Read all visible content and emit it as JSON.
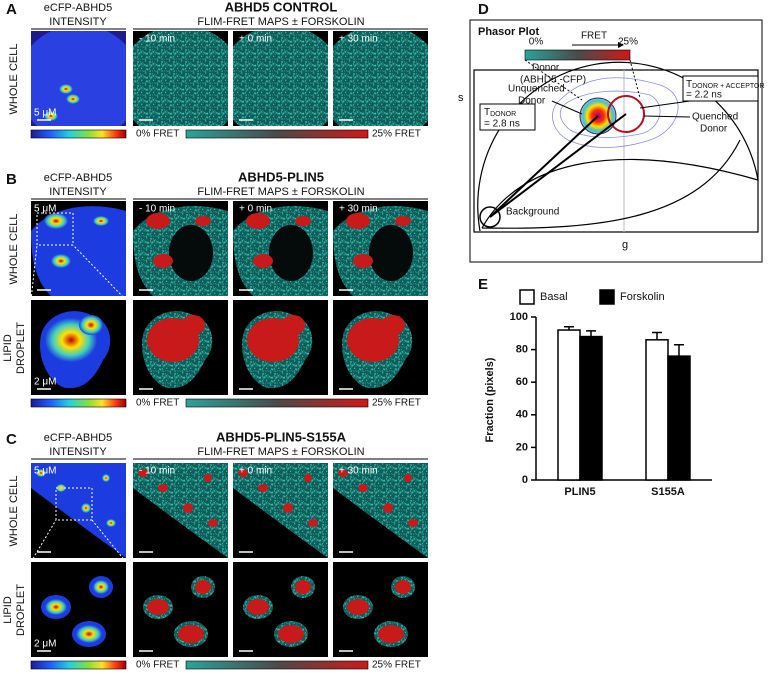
{
  "panels": {
    "A": {
      "letter": "A",
      "intensity_title": [
        "eCFP-ABHD5",
        "INTENSITY"
      ],
      "title": "ABHD5 CONTROL",
      "subtitle": "FLIM-FRET MAPS ± FORSKOLIN",
      "row_labels": [
        [
          "WHOLE CELL"
        ]
      ],
      "times": [
        "- 10 min",
        "+ 0 min",
        "+ 30 min"
      ],
      "scale_bars": [
        "5 μM"
      ],
      "fret_min": "0% FRET",
      "fret_max": "25% FRET"
    },
    "B": {
      "letter": "B",
      "intensity_title": [
        "eCFP-ABHD5",
        "INTENSITY"
      ],
      "title": "ABHD5-PLIN5",
      "subtitle": "FLIM-FRET MAPS ± FORSKOLIN",
      "row_labels": [
        [
          "WHOLE CELL"
        ],
        [
          "LIPID",
          "DROPLET"
        ]
      ],
      "times": [
        "- 10 min",
        "+ 0 min",
        "+ 30 min"
      ],
      "scale_bars": [
        "5 μM",
        "2 μM"
      ],
      "fret_min": "0% FRET",
      "fret_max": "25% FRET"
    },
    "C": {
      "letter": "C",
      "intensity_title": [
        "eCFP-ABHD5",
        "INTENSITY"
      ],
      "title": "ABHD5-PLIN5-S155A",
      "subtitle": "FLIM-FRET MAPS ± FORSKOLIN",
      "row_labels": [
        [
          "WHOLE CELL"
        ],
        [
          "LIPID",
          "DROPLET"
        ]
      ],
      "times": [
        "- 10 min",
        "+ 0 min",
        "+ 30 min"
      ],
      "scale_bars": [
        "5 μM",
        "2 μM"
      ],
      "fret_min": "0% FRET",
      "fret_max": "25% FRET"
    },
    "D": {
      "letter": "D",
      "title": "Phasor Plot",
      "fret": "FRET",
      "fret_min": "0%",
      "fret_max": "25%",
      "donor": [
        "Donor",
        "(ABHD5 -CFP)"
      ],
      "s_axis": "s",
      "g_axis": "g",
      "unquenched": [
        "Unquenched",
        "Donor"
      ],
      "quenched": [
        "Quenched",
        "Donor"
      ],
      "tau_donor": {
        "symbol": "T",
        "sub": "DONOR",
        "value": "= 2.8 ns"
      },
      "tau_fret": {
        "symbol": "T",
        "sub": "DONOR + ACCEPTOR",
        "value": "= 2.2 ns"
      },
      "background": "Background"
    },
    "E": {
      "letter": "E"
    }
  },
  "chart_data": {
    "type": "bar",
    "ylabel": "Fraction (pixels)",
    "categories": [
      "PLIN5",
      "S155A"
    ],
    "series": [
      {
        "name": "Basal",
        "color": "#ffffff",
        "values": [
          92,
          86
        ],
        "errors": [
          2,
          4.5
        ]
      },
      {
        "name": "Forskolin",
        "color": "#000000",
        "values": [
          88,
          76
        ],
        "errors": [
          3.5,
          7
        ]
      }
    ],
    "ylim": [
      0,
      100
    ],
    "yticks": [
      0,
      20,
      40,
      60,
      80,
      100
    ]
  }
}
